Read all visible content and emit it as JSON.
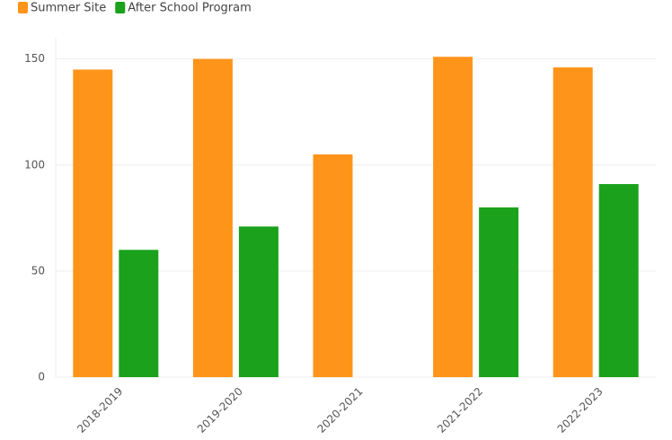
{
  "chart_data": {
    "type": "bar",
    "categories": [
      "2018-2019",
      "2019-2020",
      "2020-2021",
      "2021-2022",
      "2022-2023"
    ],
    "series": [
      {
        "name": "Summer Site",
        "color": "#ff941a",
        "values": [
          145,
          150,
          105,
          151,
          146
        ]
      },
      {
        "name": "After School Program",
        "color": "#1ba11c",
        "values": [
          60,
          71,
          null,
          80,
          91
        ]
      }
    ],
    "ylim": [
      0,
      160
    ],
    "yticks": [
      0,
      50,
      100,
      150
    ],
    "grid": true,
    "legend": "top-left"
  }
}
